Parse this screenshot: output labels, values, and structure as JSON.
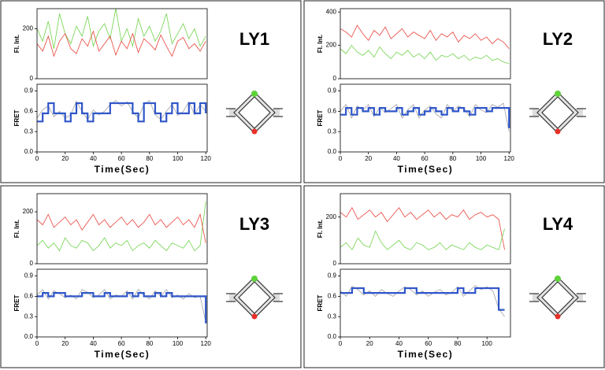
{
  "chart_data": [
    {
      "type": "line",
      "title": "LY1",
      "ylabel": "Fl. Int.",
      "x": [
        0,
        4,
        8,
        12,
        16,
        20,
        24,
        28,
        32,
        36,
        40,
        44,
        48,
        52,
        56,
        60,
        64,
        68,
        72,
        76,
        80,
        84,
        88,
        92,
        96,
        100,
        104,
        108,
        112,
        116,
        120
      ],
      "xlim": [
        0,
        121
      ],
      "ylim": [
        0,
        280
      ],
      "yticks": [
        0,
        200
      ],
      "series": [
        {
          "color": "#6fd34a",
          "values": [
            200,
            150,
            230,
            120,
            260,
            180,
            140,
            210,
            170,
            250,
            130,
            190,
            220,
            160,
            280,
            150,
            200,
            130,
            240,
            170,
            210,
            150,
            190,
            260,
            140,
            180,
            220,
            160,
            200,
            130,
            170
          ]
        },
        {
          "color": "#e8423a",
          "values": [
            140,
            110,
            170,
            90,
            150,
            180,
            120,
            100,
            160,
            130,
            190,
            110,
            140,
            170,
            95,
            150,
            120,
            180,
            105,
            160,
            140,
            115,
            175,
            130,
            90,
            150,
            165,
            120,
            140,
            110,
            150
          ]
        }
      ]
    },
    {
      "type": "line",
      "ylabel": "FRET",
      "xlabel": "Time(Sec)",
      "x": [
        0,
        4,
        8,
        12,
        16,
        20,
        24,
        28,
        32,
        36,
        40,
        44,
        48,
        52,
        56,
        60,
        64,
        68,
        72,
        76,
        80,
        84,
        88,
        92,
        96,
        100,
        104,
        108,
        112,
        116,
        120
      ],
      "xlim": [
        0,
        121
      ],
      "xticks": [
        0,
        20,
        40,
        60,
        80,
        100,
        120
      ],
      "ylim": [
        0,
        1
      ],
      "yticks": [
        {
          "value": 0,
          "label": "0.0"
        },
        0.3,
        0.6,
        0.9
      ],
      "series": [
        {
          "color": "#a0a0a0",
          "values": [
            0.5,
            0.62,
            0.68,
            0.52,
            0.6,
            0.5,
            0.55,
            0.75,
            0.6,
            0.48,
            0.62,
            0.55,
            0.6,
            0.7,
            0.76,
            0.68,
            0.74,
            0.6,
            0.5,
            0.7,
            0.76,
            0.55,
            0.48,
            0.6,
            0.7,
            0.54,
            0.6,
            0.74,
            0.55,
            0.7,
            0.6
          ]
        },
        {
          "color": "#2f56c9",
          "step": true,
          "values": [
            0.45,
            0.57,
            0.72,
            0.57,
            0.57,
            0.45,
            0.57,
            0.72,
            0.57,
            0.45,
            0.57,
            0.57,
            0.57,
            0.72,
            0.72,
            0.72,
            0.72,
            0.57,
            0.45,
            0.72,
            0.72,
            0.57,
            0.45,
            0.57,
            0.72,
            0.57,
            0.57,
            0.72,
            0.57,
            0.72,
            0.57
          ]
        }
      ]
    },
    {
      "type": "line",
      "title": "LY2",
      "ylabel": "Fl. Int.",
      "x": [
        0,
        4,
        8,
        12,
        16,
        20,
        24,
        28,
        32,
        36,
        40,
        44,
        48,
        52,
        56,
        60,
        64,
        68,
        72,
        76,
        80,
        84,
        88,
        92,
        96,
        100,
        104,
        108,
        112,
        116,
        120
      ],
      "xlim": [
        0,
        121
      ],
      "ylim": [
        0,
        420
      ],
      "yticks": [
        0,
        200,
        400
      ],
      "series": [
        {
          "color": "#e8423a",
          "values": [
            300,
            280,
            250,
            320,
            270,
            230,
            290,
            260,
            310,
            240,
            270,
            300,
            250,
            280,
            260,
            240,
            290,
            230,
            270,
            250,
            280,
            220,
            260,
            240,
            270,
            230,
            250,
            210,
            240,
            220,
            180
          ]
        },
        {
          "color": "#6fd34a",
          "values": [
            180,
            150,
            200,
            160,
            140,
            170,
            130,
            190,
            150,
            120,
            160,
            140,
            170,
            130,
            150,
            120,
            160,
            110,
            140,
            130,
            150,
            120,
            140,
            110,
            130,
            120,
            140,
            110,
            120,
            100,
            90
          ]
        }
      ]
    },
    {
      "type": "line",
      "ylabel": "FRET",
      "xlabel": "Time(Sec)",
      "x": [
        0,
        4,
        8,
        12,
        16,
        20,
        24,
        28,
        32,
        36,
        40,
        44,
        48,
        52,
        56,
        60,
        64,
        68,
        72,
        76,
        80,
        84,
        88,
        92,
        96,
        100,
        104,
        108,
        112,
        116,
        120
      ],
      "xlim": [
        0,
        121
      ],
      "xticks": [
        0,
        20,
        40,
        60,
        80,
        100,
        120
      ],
      "ylim": [
        0,
        1
      ],
      "yticks": [
        {
          "value": 0,
          "label": "0.0"
        },
        0.3,
        0.6,
        0.9
      ],
      "series": [
        {
          "color": "#a0a0a0",
          "values": [
            0.6,
            0.7,
            0.5,
            0.68,
            0.62,
            0.7,
            0.52,
            0.66,
            0.58,
            0.64,
            0.7,
            0.5,
            0.62,
            0.7,
            0.5,
            0.62,
            0.68,
            0.56,
            0.5,
            0.7,
            0.6,
            0.68,
            0.64,
            0.52,
            0.7,
            0.62,
            0.58,
            0.7,
            0.66,
            0.72,
            0.3
          ]
        },
        {
          "color": "#2f56c9",
          "step": true,
          "values": [
            0.55,
            0.65,
            0.55,
            0.65,
            0.6,
            0.65,
            0.55,
            0.65,
            0.6,
            0.6,
            0.65,
            0.55,
            0.6,
            0.65,
            0.55,
            0.6,
            0.65,
            0.6,
            0.55,
            0.65,
            0.6,
            0.65,
            0.6,
            0.55,
            0.65,
            0.65,
            0.6,
            0.65,
            0.65,
            0.65,
            0.35
          ]
        }
      ]
    },
    {
      "type": "line",
      "title": "LY3",
      "ylabel": "Fl. Int.",
      "x": [
        0,
        4,
        8,
        12,
        16,
        20,
        24,
        28,
        32,
        36,
        40,
        44,
        48,
        52,
        56,
        60,
        64,
        68,
        72,
        76,
        80,
        84,
        88,
        92,
        96,
        100,
        104,
        108,
        112,
        116,
        120
      ],
      "xlim": [
        0,
        121
      ],
      "ylim": [
        0,
        270
      ],
      "yticks": [
        0,
        200
      ],
      "series": [
        {
          "color": "#6fd34a",
          "values": [
            70,
            90,
            60,
            80,
            50,
            100,
            70,
            60,
            90,
            80,
            50,
            70,
            100,
            60,
            80,
            70,
            90,
            50,
            70,
            80,
            60,
            90,
            70,
            50,
            80,
            70,
            60,
            90,
            50,
            70,
            240
          ]
        },
        {
          "color": "#e8423a",
          "values": [
            170,
            150,
            190,
            140,
            160,
            180,
            150,
            170,
            130,
            160,
            190,
            150,
            170,
            140,
            160,
            180,
            150,
            170,
            140,
            160,
            190,
            150,
            170,
            140,
            160,
            180,
            150,
            170,
            140,
            190,
            80
          ]
        }
      ]
    },
    {
      "type": "line",
      "ylabel": "FRET",
      "xlabel": "Time(Sec)",
      "x": [
        0,
        4,
        8,
        12,
        16,
        20,
        24,
        28,
        32,
        36,
        40,
        44,
        48,
        52,
        56,
        60,
        64,
        68,
        72,
        76,
        80,
        84,
        88,
        92,
        96,
        100,
        104,
        108,
        112,
        116,
        120
      ],
      "xlim": [
        0,
        121
      ],
      "xticks": [
        0,
        20,
        40,
        60,
        80,
        100,
        120
      ],
      "ylim": [
        0,
        1
      ],
      "yticks": [
        {
          "value": 0,
          "label": "0.0"
        },
        0.3,
        0.6,
        0.9
      ],
      "series": [
        {
          "color": "#a0a0a0",
          "values": [
            0.62,
            0.7,
            0.56,
            0.68,
            0.64,
            0.58,
            0.62,
            0.56,
            0.7,
            0.66,
            0.58,
            0.62,
            0.7,
            0.56,
            0.62,
            0.6,
            0.68,
            0.56,
            0.7,
            0.62,
            0.56,
            0.68,
            0.6,
            0.7,
            0.58,
            0.62,
            0.56,
            0.64,
            0.58,
            0.6,
            0.22
          ]
        },
        {
          "color": "#2f56c9",
          "step": true,
          "values": [
            0.6,
            0.65,
            0.6,
            0.65,
            0.65,
            0.6,
            0.6,
            0.6,
            0.65,
            0.65,
            0.6,
            0.6,
            0.65,
            0.6,
            0.6,
            0.6,
            0.65,
            0.6,
            0.65,
            0.6,
            0.6,
            0.65,
            0.6,
            0.65,
            0.6,
            0.6,
            0.6,
            0.6,
            0.6,
            0.6,
            0.2
          ]
        }
      ]
    },
    {
      "type": "line",
      "title": "LY4",
      "ylabel": "Fl. Int.",
      "x": [
        0,
        4,
        8,
        12,
        16,
        20,
        24,
        28,
        32,
        36,
        40,
        44,
        48,
        52,
        56,
        60,
        64,
        68,
        72,
        76,
        80,
        84,
        88,
        92,
        96,
        100,
        104,
        108,
        112
      ],
      "xlim": [
        0,
        116
      ],
      "ylim": [
        0,
        300
      ],
      "yticks": [
        0,
        200
      ],
      "series": [
        {
          "color": "#e8423a",
          "values": [
            220,
            200,
            240,
            190,
            210,
            230,
            200,
            220,
            180,
            210,
            240,
            200,
            220,
            190,
            210,
            230,
            200,
            220,
            190,
            210,
            200,
            230,
            190,
            210,
            220,
            200,
            210,
            190,
            60
          ]
        },
        {
          "color": "#6fd34a",
          "values": [
            70,
            90,
            60,
            110,
            80,
            70,
            140,
            90,
            60,
            80,
            100,
            70,
            60,
            90,
            80,
            60,
            70,
            90,
            60,
            80,
            70,
            60,
            90,
            70,
            60,
            80,
            70,
            60,
            150
          ]
        }
      ]
    },
    {
      "type": "line",
      "ylabel": "FRET",
      "xlabel": "Time(Sec)",
      "x": [
        0,
        4,
        8,
        12,
        16,
        20,
        24,
        28,
        32,
        36,
        40,
        44,
        48,
        52,
        56,
        60,
        64,
        68,
        72,
        76,
        80,
        84,
        88,
        92,
        96,
        100,
        104,
        108,
        112
      ],
      "xlim": [
        0,
        116
      ],
      "xticks": [
        0,
        20,
        40,
        60,
        80,
        100
      ],
      "ylim": [
        0,
        1
      ],
      "yticks": [
        {
          "value": 0,
          "label": "0.0"
        },
        0.3,
        0.6,
        0.9
      ],
      "series": [
        {
          "color": "#a0a0a0",
          "values": [
            0.68,
            0.6,
            0.75,
            0.7,
            0.62,
            0.68,
            0.6,
            0.7,
            0.64,
            0.6,
            0.68,
            0.74,
            0.7,
            0.62,
            0.68,
            0.6,
            0.66,
            0.7,
            0.62,
            0.66,
            0.74,
            0.6,
            0.68,
            0.76,
            0.7,
            0.74,
            0.68,
            0.42,
            0.3
          ]
        },
        {
          "color": "#2f56c9",
          "step": true,
          "values": [
            0.65,
            0.65,
            0.72,
            0.72,
            0.65,
            0.65,
            0.65,
            0.65,
            0.65,
            0.65,
            0.65,
            0.72,
            0.72,
            0.65,
            0.65,
            0.65,
            0.65,
            0.65,
            0.65,
            0.65,
            0.72,
            0.65,
            0.65,
            0.72,
            0.72,
            0.72,
            0.72,
            0.4,
            0.4
          ]
        }
      ]
    }
  ]
}
